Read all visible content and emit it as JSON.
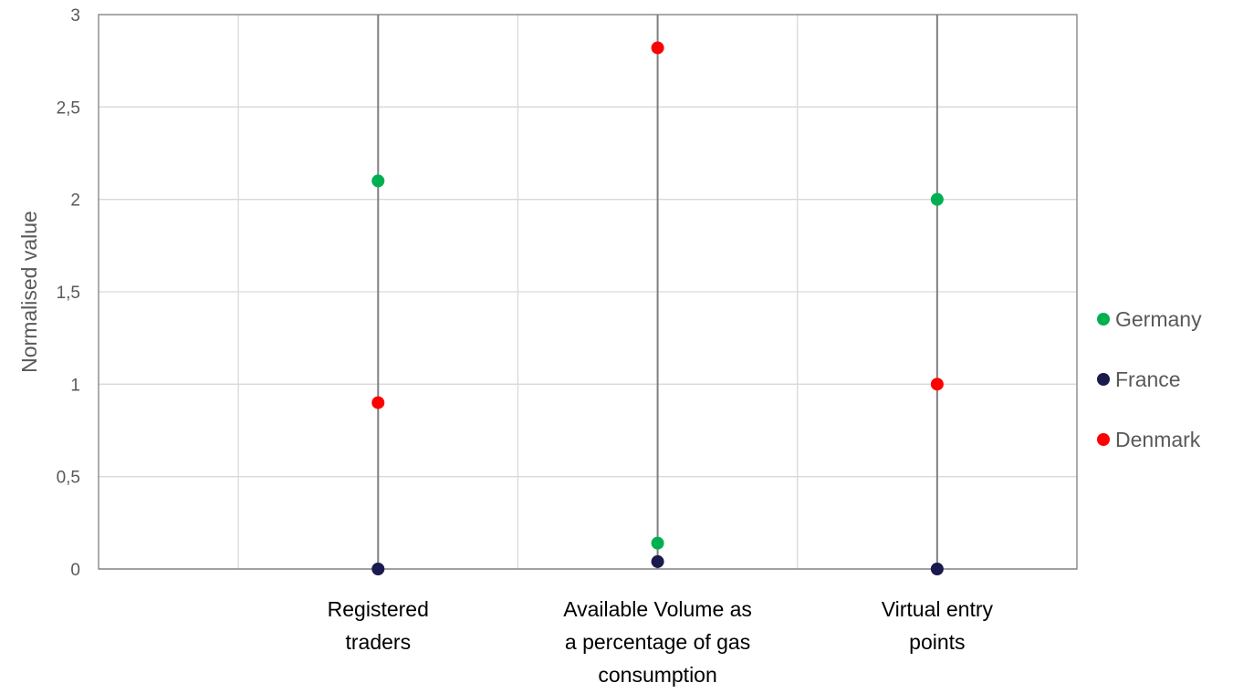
{
  "chart_data": {
    "type": "scatter",
    "ylabel": "Normalised value",
    "ylim": [
      0,
      3
    ],
    "y_ticks": [
      "0",
      "0,5",
      "1",
      "1,5",
      "2",
      "2,5",
      "3"
    ],
    "y_tick_values": [
      0,
      0.5,
      1,
      1.5,
      2,
      2.5,
      3
    ],
    "categories": [
      [
        "Registered",
        "traders"
      ],
      [
        "Available Volume as",
        "a percentage of gas",
        "consumption"
      ],
      [
        "Virtual entry",
        "points"
      ]
    ],
    "category_x": [
      1,
      2,
      3
    ],
    "xlim": [
      0,
      3.5
    ],
    "grid": true,
    "legend_position": "right",
    "series": [
      {
        "name": "Germany",
        "color": "#00b050",
        "values": [
          2.1,
          0.14,
          2.0
        ]
      },
      {
        "name": "France",
        "color": "#1a1a4e",
        "values": [
          0.0,
          0.04,
          0.0
        ]
      },
      {
        "name": "Denmark",
        "color": "#ff0000",
        "values": [
          0.9,
          2.82,
          1.0
        ]
      }
    ]
  }
}
